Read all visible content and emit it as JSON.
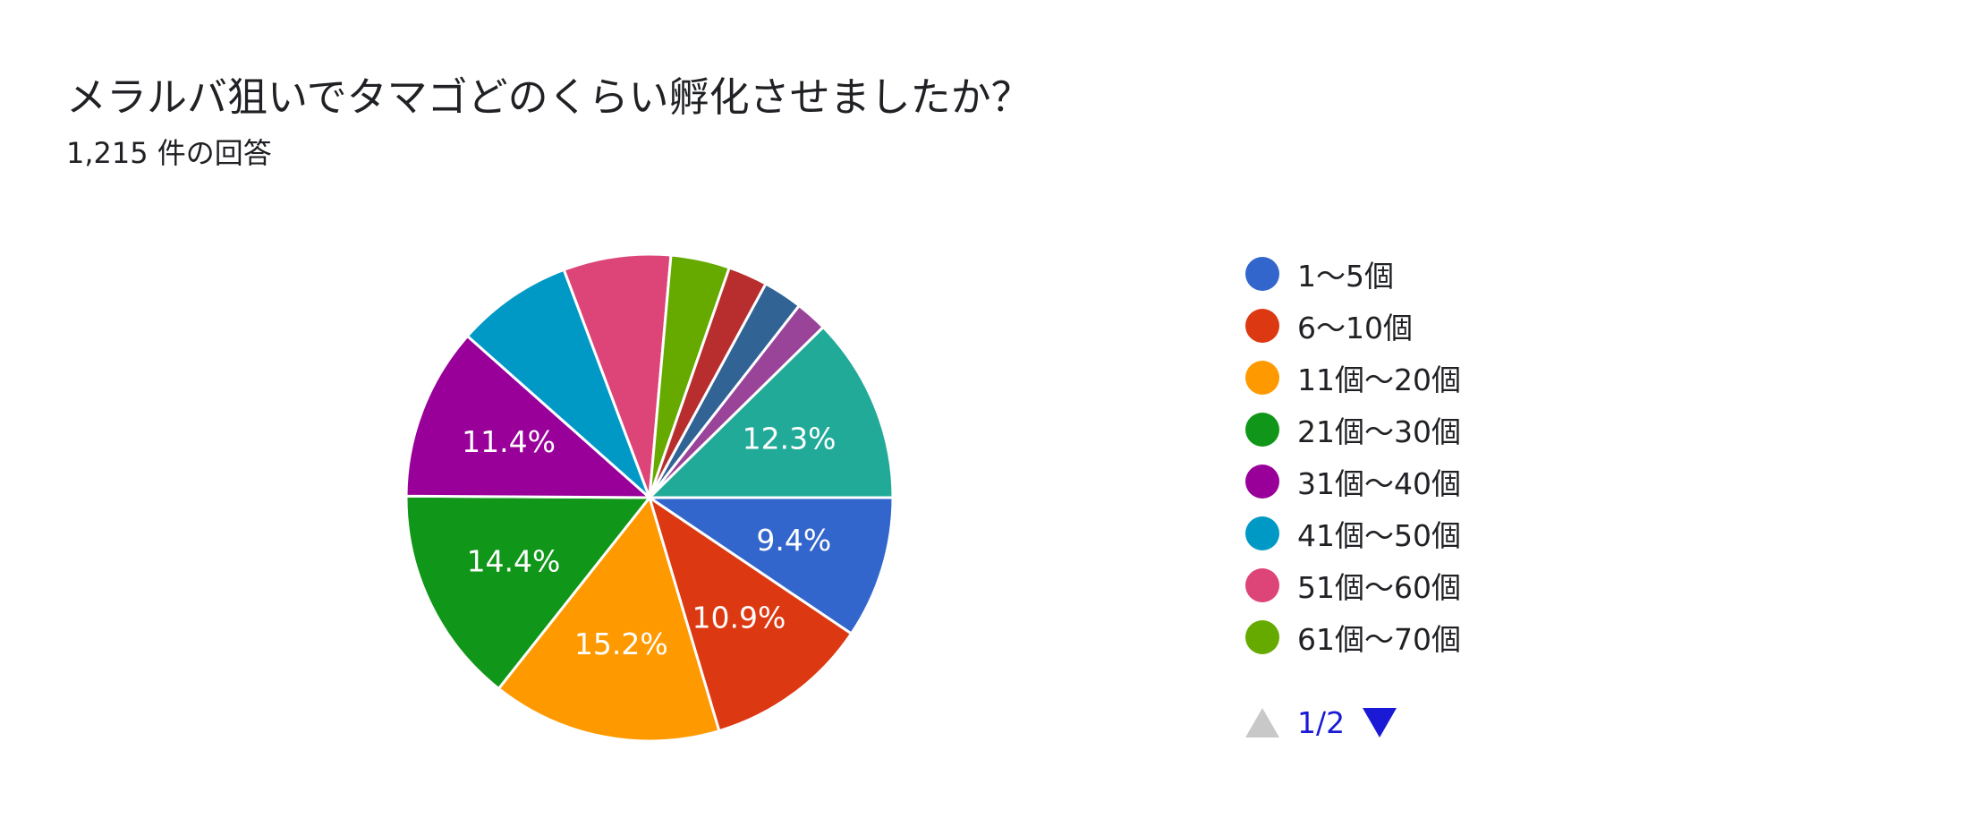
{
  "title": "メラルバ狙いでタマゴどのくらい孵化させましたか？",
  "subtitle": "1,215 件の回答",
  "pager": {
    "page": "1/2"
  },
  "chart_data": {
    "type": "pie",
    "slices": [
      {
        "label": "1〜5個",
        "value": 9.4,
        "color": "#3366cc",
        "show_label": "9.4%"
      },
      {
        "label": "6〜10個",
        "value": 10.9,
        "color": "#dc3912",
        "show_label": "10.9%"
      },
      {
        "label": "11個〜20個",
        "value": 15.2,
        "color": "#ff9900",
        "show_label": "15.2%"
      },
      {
        "label": "21個〜30個",
        "value": 14.4,
        "color": "#109618",
        "show_label": "14.4%"
      },
      {
        "label": "31個〜40個",
        "value": 11.4,
        "color": "#990099",
        "show_label": "11.4%"
      },
      {
        "label": "41個〜50個",
        "value": 7.7,
        "color": "#0099c6",
        "show_label": ""
      },
      {
        "label": "51個〜60個",
        "value": 7.1,
        "color": "#dd4477",
        "show_label": ""
      },
      {
        "label": "61個〜70個",
        "value": 3.9,
        "color": "#66aa00",
        "show_label": ""
      },
      {
        "label": "",
        "value": 2.6,
        "color": "#b82e2e",
        "show_label": ""
      },
      {
        "label": "",
        "value": 2.6,
        "color": "#316395",
        "show_label": ""
      },
      {
        "label": "",
        "value": 2.1,
        "color": "#994499",
        "show_label": ""
      },
      {
        "label": "",
        "value": 12.3,
        "color": "#22aa99",
        "show_label": "12.3%"
      }
    ],
    "legend_position": "right"
  }
}
